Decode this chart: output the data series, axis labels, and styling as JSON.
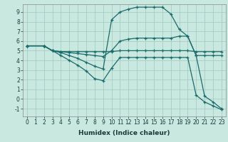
{
  "xlabel": "Humidex (Indice chaleur)",
  "xlim": [
    -0.5,
    23.5
  ],
  "ylim": [
    -1.8,
    9.8
  ],
  "xticks": [
    0,
    1,
    2,
    3,
    4,
    5,
    6,
    7,
    8,
    9,
    10,
    11,
    12,
    13,
    14,
    15,
    16,
    17,
    18,
    19,
    20,
    21,
    22,
    23
  ],
  "yticks": [
    -1,
    0,
    1,
    2,
    3,
    4,
    5,
    6,
    7,
    8,
    9
  ],
  "bg_color": "#c8e8e0",
  "grid_color": "#a0c8c0",
  "line_color": "#1a6b6b",
  "lines": [
    {
      "x": [
        0,
        2,
        3,
        4,
        5,
        6,
        7,
        8,
        9,
        10,
        11,
        12,
        13,
        14,
        15,
        16,
        17,
        18,
        19,
        20,
        21,
        22,
        23
      ],
      "y": [
        5.5,
        5.5,
        5.0,
        4.8,
        4.5,
        4.2,
        3.8,
        3.4,
        3.1,
        8.2,
        9.0,
        9.3,
        9.5,
        9.5,
        9.5,
        9.5,
        8.8,
        7.2,
        6.5,
        4.5,
        0.3,
        -0.3,
        -1.0
      ]
    },
    {
      "x": [
        0,
        2,
        3,
        4,
        5,
        6,
        7,
        8,
        9,
        10,
        11,
        12,
        13,
        14,
        15,
        16,
        17,
        18,
        19,
        20,
        21,
        22,
        23
      ],
      "y": [
        5.5,
        5.5,
        5.0,
        4.9,
        4.8,
        4.7,
        4.6,
        4.5,
        4.4,
        5.0,
        6.0,
        6.2,
        6.3,
        6.3,
        6.3,
        6.3,
        6.3,
        6.5,
        6.5,
        4.5,
        4.5,
        4.5,
        4.5
      ]
    },
    {
      "x": [
        0,
        2,
        3,
        4,
        5,
        6,
        7,
        8,
        9,
        10,
        11,
        12,
        13,
        14,
        15,
        16,
        17,
        18,
        19,
        20,
        21,
        22,
        23
      ],
      "y": [
        5.5,
        5.5,
        5.0,
        4.9,
        4.9,
        4.9,
        4.9,
        4.9,
        4.9,
        4.9,
        5.0,
        5.0,
        5.0,
        5.0,
        5.0,
        5.0,
        5.0,
        5.0,
        5.0,
        4.9,
        4.9,
        4.9,
        4.9
      ]
    },
    {
      "x": [
        0,
        2,
        3,
        4,
        5,
        6,
        7,
        8,
        9,
        10,
        11,
        12,
        13,
        14,
        15,
        16,
        17,
        18,
        19,
        20,
        21,
        22,
        23
      ],
      "y": [
        5.5,
        5.5,
        5.0,
        4.5,
        4.0,
        3.5,
        2.9,
        2.1,
        1.9,
        3.2,
        4.3,
        4.3,
        4.3,
        4.3,
        4.3,
        4.3,
        4.3,
        4.3,
        4.3,
        0.4,
        -0.3,
        -0.7,
        -1.1
      ]
    }
  ]
}
